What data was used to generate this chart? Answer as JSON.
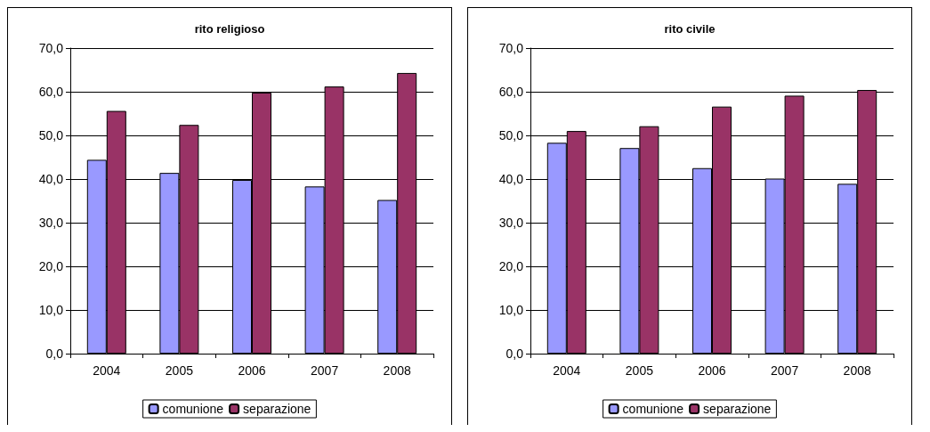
{
  "chart_data": [
    {
      "type": "bar",
      "title": "rito religioso",
      "categories": [
        "2004",
        "2005",
        "2006",
        "2007",
        "2008"
      ],
      "series": [
        {
          "name": "comunione",
          "color": "#9999ff",
          "values": [
            44.4,
            41.4,
            39.8,
            38.3,
            35.2
          ]
        },
        {
          "name": "separazione",
          "color": "#993366",
          "values": [
            55.6,
            52.4,
            59.8,
            61.2,
            64.3
          ]
        }
      ],
      "ylim": [
        0,
        70
      ],
      "yticks": [
        {
          "value": 0,
          "label": "0,0"
        },
        {
          "value": 10,
          "label": "10,0"
        },
        {
          "value": 20,
          "label": "20,0"
        },
        {
          "value": 30,
          "label": "30,0"
        },
        {
          "value": 40,
          "label": "40,0"
        },
        {
          "value": 50,
          "label": "50,0"
        },
        {
          "value": 60,
          "label": "60,0"
        },
        {
          "value": 70,
          "label": "70,0"
        }
      ],
      "grid": "y",
      "legend": "bottom"
    },
    {
      "type": "bar",
      "title": "rito civile",
      "categories": [
        "2004",
        "2005",
        "2006",
        "2007",
        "2008"
      ],
      "series": [
        {
          "name": "comunione",
          "color": "#9999ff",
          "values": [
            48.3,
            47.1,
            42.5,
            40.1,
            38.9
          ]
        },
        {
          "name": "separazione",
          "color": "#993366",
          "values": [
            51.0,
            52.1,
            56.6,
            59.1,
            60.4
          ]
        }
      ],
      "ylim": [
        0,
        70
      ],
      "yticks": [
        {
          "value": 0,
          "label": "0,0"
        },
        {
          "value": 10,
          "label": "10,0"
        },
        {
          "value": 20,
          "label": "20,0"
        },
        {
          "value": 30,
          "label": "30,0"
        },
        {
          "value": 40,
          "label": "40,0"
        },
        {
          "value": 50,
          "label": "50,0"
        },
        {
          "value": 60,
          "label": "60,0"
        },
        {
          "value": 70,
          "label": "70,0"
        }
      ],
      "grid": "y",
      "legend": "bottom"
    }
  ]
}
